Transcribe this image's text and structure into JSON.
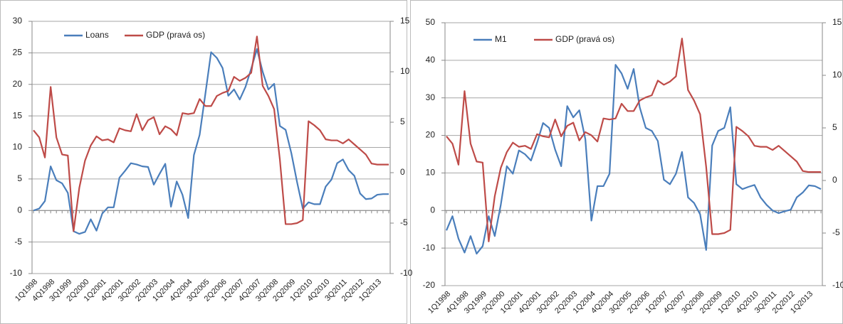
{
  "chart_data": [
    {
      "type": "line",
      "categories": [
        "1Q1998",
        null,
        null,
        "4Q1998",
        null,
        null,
        "3Q1999",
        null,
        null,
        "2Q2000",
        null,
        null,
        "1Q2001",
        null,
        null,
        "4Q2001",
        null,
        null,
        "3Q2002",
        null,
        null,
        "2Q2003",
        null,
        null,
        "1Q2004",
        null,
        null,
        "4Q2004",
        null,
        null,
        "3Q2005",
        null,
        null,
        "2Q2006",
        null,
        null,
        "1Q2007",
        null,
        null,
        "4Q2007",
        null,
        null,
        "3Q2008",
        null,
        null,
        "2Q2009",
        null,
        null,
        "1Q2010",
        null,
        null,
        "4Q2010",
        null,
        null,
        "3Q2011",
        null,
        null,
        "2Q2012",
        null,
        null,
        "1Q2013",
        null,
        null
      ],
      "series": [
        {
          "name": "Loans",
          "color": "#4a7ebb",
          "values": [
            0,
            0.3,
            1.5,
            7,
            4.8,
            4.3,
            2.8,
            -3.3,
            -3.7,
            -3.4,
            -1.4,
            -3.2,
            -0.5,
            0.5,
            0.5,
            5.2,
            6.3,
            7.5,
            7.3,
            7,
            6.9,
            4.1,
            5.8,
            7.4,
            0.6,
            4.6,
            2.5,
            -1.2,
            8.8,
            12,
            18.5,
            25.1,
            24.2,
            22.6,
            18.2,
            19.2,
            17.6,
            19.6,
            22.5,
            25.6,
            22,
            19.2,
            20.1,
            13.4,
            12.8,
            9.1,
            4.5,
            0.3,
            1.3,
            1,
            1,
            3.8,
            4.9,
            7.5,
            8.1,
            6.4,
            5.5,
            2.7,
            1.8,
            1.9,
            2.5,
            2.6,
            2.6
          ]
        },
        {
          "name": "GDP (pravá os)",
          "color": "#be4b48",
          "axis": "y2",
          "values": [
            4.2,
            3.5,
            1.5,
            8.5,
            3.5,
            1.8,
            1.7,
            -5.8,
            -1.5,
            1.2,
            2.7,
            3.6,
            3.2,
            3.3,
            3,
            4.4,
            4.2,
            4.1,
            5.8,
            4.2,
            5.2,
            5.5,
            3.8,
            4.6,
            4.3,
            3.7,
            5.9,
            5.8,
            5.9,
            7.3,
            6.6,
            6.6,
            7.6,
            7.9,
            8.1,
            9.5,
            9.1,
            9.4,
            9.9,
            13.5,
            8.6,
            7.6,
            6.3,
            1.3,
            -5.1,
            -5.1,
            -5,
            -4.7,
            5.1,
            4.7,
            4.2,
            3.3,
            3.2,
            3.2,
            2.9,
            3.3,
            2.8,
            2.3,
            1.8,
            0.9,
            0.8,
            0.8,
            0.8
          ]
        }
      ],
      "ylim": [
        -10,
        30
      ],
      "yticks": [
        -10,
        -5,
        0,
        5,
        10,
        15,
        20,
        25,
        30
      ],
      "y2lim": [
        -10,
        15
      ],
      "y2ticks": [
        -10,
        -5,
        0,
        5,
        10,
        15
      ],
      "grid": true,
      "legend": "upper left"
    },
    {
      "type": "line",
      "categories": [
        "1Q1998",
        null,
        null,
        "4Q1998",
        null,
        null,
        "3Q1999",
        null,
        null,
        "2Q2000",
        null,
        null,
        "1Q2001",
        null,
        null,
        "4Q2001",
        null,
        null,
        "3Q2002",
        null,
        null,
        "2Q2003",
        null,
        null,
        "1Q2004",
        null,
        null,
        "4Q2004",
        null,
        null,
        "3Q2005",
        null,
        null,
        "2Q2006",
        null,
        null,
        "1Q2007",
        null,
        null,
        "4Q2007",
        null,
        null,
        "3Q2008",
        null,
        null,
        "2Q2009",
        null,
        null,
        "1Q2010",
        null,
        null,
        "4Q2010",
        null,
        null,
        "3Q2011",
        null,
        null,
        "2Q2012",
        null,
        null,
        "1Q2013",
        null,
        null
      ],
      "series": [
        {
          "name": "M1",
          "color": "#4a7ebb",
          "values": [
            -5.3,
            -1.5,
            -7.5,
            -11.2,
            -6.8,
            -11.5,
            -9.5,
            -1.5,
            -6.8,
            1.5,
            11.8,
            9.8,
            16,
            15,
            13.3,
            18,
            23.3,
            22,
            16.2,
            11.8,
            27.8,
            24.8,
            26.7,
            19,
            -2.7,
            6.5,
            6.5,
            9.8,
            38.8,
            36.5,
            32.4,
            37.7,
            27.5,
            22,
            21.2,
            18.5,
            8.2,
            7,
            9.8,
            15.6,
            3.5,
            2,
            -1,
            -10.5,
            17.3,
            21.2,
            22,
            27.5,
            7,
            5.7,
            6.3,
            6.8,
            3.5,
            1.5,
            0,
            -0.7,
            -0.2,
            0.2,
            3.5,
            4.8,
            6.7,
            6.5,
            5.7
          ]
        },
        {
          "name": "GDP (pravá os)",
          "color": "#be4b48",
          "axis": "y2",
          "values": [
            4.2,
            3.5,
            1.5,
            8.5,
            3.5,
            1.8,
            1.7,
            -5.8,
            -1.5,
            1.2,
            2.7,
            3.6,
            3.2,
            3.3,
            3,
            4.4,
            4.2,
            4.1,
            5.8,
            4.2,
            5.2,
            5.5,
            3.8,
            4.6,
            4.3,
            3.7,
            5.9,
            5.8,
            5.9,
            7.3,
            6.6,
            6.6,
            7.6,
            7.9,
            8.1,
            9.5,
            9.1,
            9.4,
            9.9,
            13.5,
            8.6,
            7.6,
            6.3,
            1.3,
            -5.1,
            -5.1,
            -5,
            -4.7,
            5.1,
            4.7,
            4.2,
            3.3,
            3.2,
            3.2,
            2.9,
            3.3,
            2.8,
            2.3,
            1.8,
            0.9,
            0.8,
            0.8,
            0.8
          ]
        }
      ],
      "ylim": [
        -20,
        50
      ],
      "yticks": [
        -20,
        -10,
        0,
        10,
        20,
        30,
        40,
        50
      ],
      "y2lim": [
        -10,
        15
      ],
      "y2ticks": [
        -10,
        -5,
        0,
        5,
        10,
        15
      ],
      "grid": true,
      "legend": "upper left"
    }
  ]
}
